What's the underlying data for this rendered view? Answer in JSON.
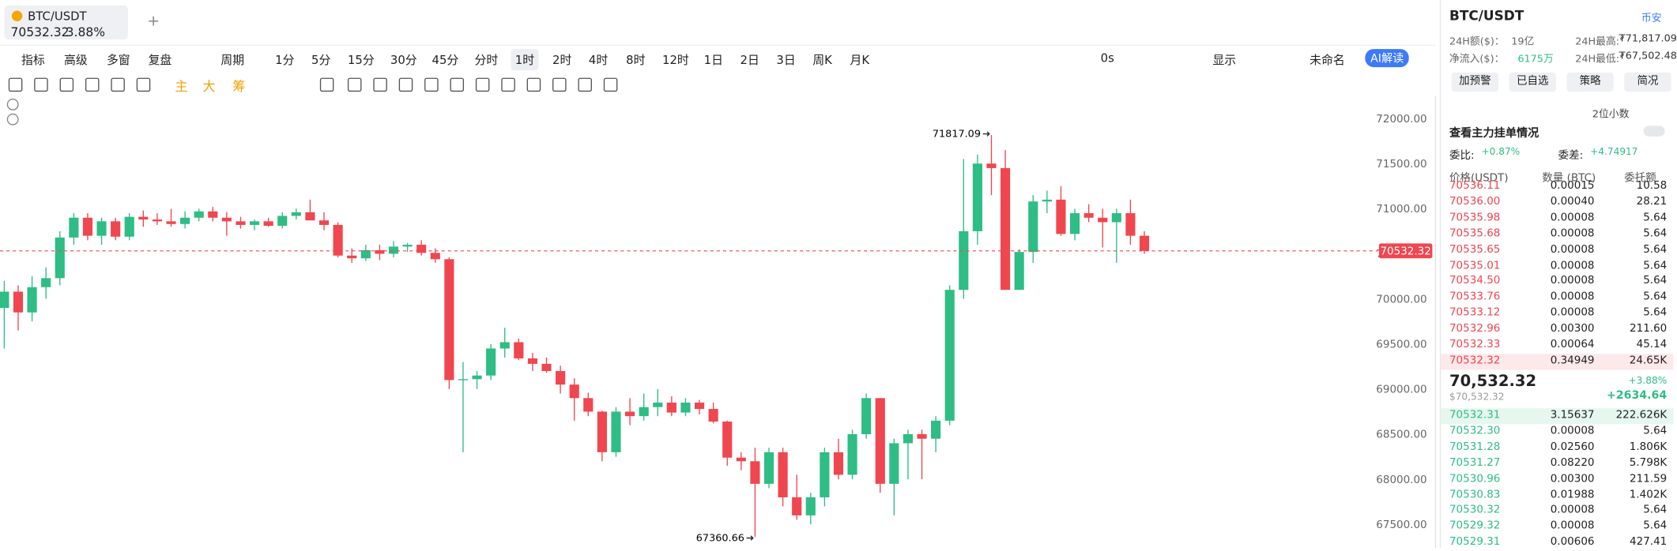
{
  "tab": {
    "symbol": "BTC/USDT",
    "price": "70532.32",
    "change": "3.88%",
    "add": "+"
  },
  "toolbar": {
    "left": [
      "指标",
      "高级",
      "多窗",
      "复盘"
    ],
    "period": "周期",
    "timeframes": [
      "1分",
      "5分",
      "15分",
      "30分",
      "45分",
      "分时",
      "1时",
      "2时",
      "4时",
      "8时",
      "12时",
      "1日",
      "2日",
      "3日",
      "周K",
      "月K"
    ],
    "active_timeframe": "1时",
    "right": [
      "0s",
      "显示",
      "未命名"
    ],
    "ai": "AI解读"
  },
  "drawing_tools": [
    "主",
    "大",
    "筹"
  ],
  "chart_data": {
    "type": "candlestick",
    "up_color": "#2ebd85",
    "down_color": "#f0464f",
    "open": [
      69900,
      70080,
      69850,
      70130,
      70230,
      70680,
      70900,
      70700,
      70860,
      70690,
      70910,
      70880,
      70860,
      70830,
      70900,
      70970,
      70900,
      70860,
      70820,
      70860,
      70810,
      70920,
      70960,
      70870,
      70820,
      70480,
      70450,
      70540,
      70500,
      70580,
      70600,
      70510,
      70440,
      69100,
      69110,
      69150,
      69450,
      69520,
      69340,
      69280,
      69200,
      69050,
      68900,
      68750,
      68300,
      68750,
      68700,
      68800,
      68850,
      68740,
      68850,
      68780,
      68640,
      68240,
      68200,
      67950,
      68300,
      67800,
      67600,
      67800,
      68300,
      68050,
      68500,
      68900,
      67950,
      68400,
      68500,
      68450,
      68650,
      70100,
      70750,
      71500,
      71450,
      70100,
      70520,
      71080,
      71100,
      70720,
      70950,
      70900,
      70850,
      70950,
      70700
    ],
    "high": [
      70200,
      70150,
      70250,
      70350,
      70750,
      70950,
      70950,
      70900,
      70900,
      70950,
      70980,
      70950,
      71000,
      70970,
      71000,
      71020,
      70960,
      70910,
      70880,
      70900,
      70960,
      71000,
      71100,
      70960,
      70850,
      70560,
      70600,
      70600,
      70640,
      70620,
      70650,
      70560,
      70460,
      69300,
      69200,
      69500,
      69680,
      69560,
      69400,
      69350,
      69260,
      69120,
      68960,
      68760,
      68800,
      68900,
      68950,
      69000,
      68920,
      68900,
      68880,
      68850,
      68650,
      68300,
      68350,
      68350,
      68350,
      68050,
      67850,
      68350,
      68450,
      68550,
      68950,
      68900,
      68450,
      68550,
      68550,
      68700,
      70150,
      71550,
      71600,
      71817.09,
      71650,
      70550,
      71150,
      71200,
      71250,
      71000,
      71050,
      71000,
      71000,
      71100,
      70750
    ],
    "low": [
      69450,
      69650,
      69750,
      70000,
      70150,
      70600,
      70650,
      70600,
      70650,
      70650,
      70800,
      70820,
      70800,
      70780,
      70860,
      70860,
      70700,
      70780,
      70760,
      70800,
      70780,
      70880,
      70880,
      70760,
      70460,
      70400,
      70420,
      70430,
      70460,
      70520,
      70480,
      70400,
      69000,
      68300,
      69000,
      69100,
      69350,
      69320,
      69200,
      69180,
      68950,
      68650,
      68700,
      68200,
      68250,
      68600,
      68650,
      68700,
      68700,
      68700,
      68720,
      68620,
      68150,
      68100,
      67360.66,
      67900,
      67700,
      67550,
      67500,
      67700,
      68000,
      68000,
      68450,
      67850,
      67600,
      68000,
      68000,
      68300,
      68600,
      70000,
      70600,
      71150,
      70100,
      70100,
      70400,
      70950,
      70700,
      70650,
      70850,
      70570,
      70400,
      70600,
      70500
    ],
    "close": [
      70080,
      69850,
      70130,
      70230,
      70680,
      70900,
      70700,
      70860,
      70690,
      70910,
      70880,
      70860,
      70830,
      70900,
      70970,
      70900,
      70860,
      70820,
      70860,
      70810,
      70920,
      70960,
      70870,
      70820,
      70480,
      70450,
      70540,
      70500,
      70580,
      70600,
      70510,
      70440,
      69100,
      69110,
      69150,
      69450,
      69520,
      69340,
      69280,
      69200,
      69050,
      68900,
      68750,
      68300,
      68750,
      68700,
      68800,
      68850,
      68740,
      68850,
      68780,
      68640,
      68240,
      68200,
      67950,
      68300,
      67800,
      67600,
      67800,
      68300,
      68050,
      68500,
      68900,
      67950,
      68400,
      68500,
      68450,
      68650,
      70100,
      70750,
      71500,
      71450,
      70100,
      70520,
      71080,
      71100,
      70720,
      70950,
      70900,
      70850,
      70950,
      70700,
      70532.32
    ],
    "ylim": [
      67240,
      72250
    ],
    "yticks": [
      {
        "value": 67500,
        "label": "67500.00"
      },
      {
        "value": 68000,
        "label": "68000.00"
      },
      {
        "value": 68500,
        "label": "68500.00"
      },
      {
        "value": 69000,
        "label": "69000.00"
      },
      {
        "value": 69500,
        "label": "69500.00"
      },
      {
        "value": 70000,
        "label": "70000.00"
      },
      {
        "value": 70500,
        "label": "70500.00"
      },
      {
        "value": 71000,
        "label": "71000.00"
      },
      {
        "value": 71500,
        "label": "71500.00"
      },
      {
        "value": 72000,
        "label": "72000.00"
      }
    ],
    "grid": false,
    "last_price": 70532.32,
    "high_annotation": 71817.09,
    "low_annotation": 67360.66
  },
  "panel": {
    "symbol": "BTC/USDT",
    "exchange": "币安",
    "stats": [
      [
        "24H额($)：",
        "19亿",
        "24H最高:",
        "₮71,817.09"
      ],
      [
        "净流入($)：",
        "6175万",
        "24H最低:",
        "₮67,502.48"
      ]
    ],
    "buttons": [
      "加预警",
      "已自选",
      "策略",
      "简况"
    ],
    "decimals": "2位小数",
    "main_orders": "查看主力挂单情况",
    "ratio_label": "委比:",
    "ratio": "+0.87%",
    "diff_label": "委差:",
    "diff": "+4.74917",
    "headers": [
      "价格(USDT)",
      "数量 (BTC)",
      "委托额"
    ],
    "asks": [
      [
        "70536.11",
        "0.00015",
        "10.58"
      ],
      [
        "70536.00",
        "0.00040",
        "28.21"
      ],
      [
        "70535.98",
        "0.00008",
        "5.64"
      ],
      [
        "70535.68",
        "0.00008",
        "5.64"
      ],
      [
        "70535.65",
        "0.00008",
        "5.64"
      ],
      [
        "70535.01",
        "0.00008",
        "5.64"
      ],
      [
        "70534.50",
        "0.00008",
        "5.64"
      ],
      [
        "70533.76",
        "0.00008",
        "5.64"
      ],
      [
        "70533.12",
        "0.00008",
        "5.64"
      ],
      [
        "70532.96",
        "0.00300",
        "211.60"
      ],
      [
        "70532.33",
        "0.00064",
        "45.14"
      ],
      [
        "70532.32",
        "0.34949",
        "24.65K"
      ]
    ],
    "mid_price": "70,532.32",
    "mid_usd": "$70,532.32",
    "mid_pct": "+3.88%",
    "mid_change": "+2634.64",
    "bids": [
      [
        "70532.31",
        "3.15637",
        "222.626K"
      ],
      [
        "70532.30",
        "0.00008",
        "5.64"
      ],
      [
        "70531.28",
        "0.02560",
        "1.806K"
      ],
      [
        "70531.27",
        "0.08220",
        "5.798K"
      ],
      [
        "70530.96",
        "0.00300",
        "211.59"
      ],
      [
        "70530.83",
        "0.01988",
        "1.402K"
      ],
      [
        "70530.32",
        "0.00008",
        "5.64"
      ],
      [
        "70529.32",
        "0.00008",
        "5.64"
      ],
      [
        "70529.31",
        "0.00606",
        "427.41"
      ]
    ]
  }
}
